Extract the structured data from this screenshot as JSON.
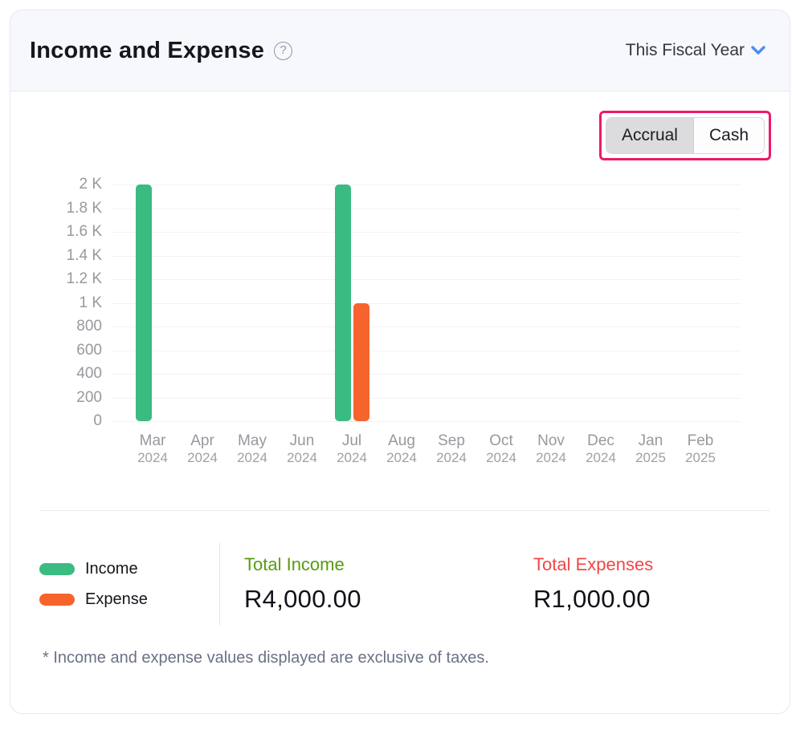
{
  "header": {
    "title": "Income and Expense",
    "help_glyph": "?",
    "period_selector": "This Fiscal Year"
  },
  "toolbar": {
    "accrual_label": "Accrual",
    "cash_label": "Cash",
    "selected": "Accrual",
    "highlight_color": "#ed196a"
  },
  "chart_data": {
    "type": "bar",
    "title": "Income and Expense",
    "categories": [
      {
        "month": "Mar",
        "year": "2024"
      },
      {
        "month": "Apr",
        "year": "2024"
      },
      {
        "month": "May",
        "year": "2024"
      },
      {
        "month": "Jun",
        "year": "2024"
      },
      {
        "month": "Jul",
        "year": "2024"
      },
      {
        "month": "Aug",
        "year": "2024"
      },
      {
        "month": "Sep",
        "year": "2024"
      },
      {
        "month": "Oct",
        "year": "2024"
      },
      {
        "month": "Nov",
        "year": "2024"
      },
      {
        "month": "Dec",
        "year": "2024"
      },
      {
        "month": "Jan",
        "year": "2025"
      },
      {
        "month": "Feb",
        "year": "2025"
      }
    ],
    "series": [
      {
        "name": "Income",
        "color": "#3abb81",
        "values": [
          2000,
          0,
          0,
          0,
          2000,
          0,
          0,
          0,
          0,
          0,
          0,
          0
        ]
      },
      {
        "name": "Expense",
        "color": "#f7632d",
        "values": [
          0,
          0,
          0,
          0,
          1000,
          0,
          0,
          0,
          0,
          0,
          0,
          0
        ]
      }
    ],
    "ylim": [
      0,
      2000
    ],
    "yticks": [
      {
        "v": 2000,
        "label": "2 K"
      },
      {
        "v": 1800,
        "label": "1.8 K"
      },
      {
        "v": 1600,
        "label": "1.6 K"
      },
      {
        "v": 1400,
        "label": "1.4 K"
      },
      {
        "v": 1200,
        "label": "1.2 K"
      },
      {
        "v": 1000,
        "label": "1 K"
      },
      {
        "v": 800,
        "label": "800"
      },
      {
        "v": 600,
        "label": "600"
      },
      {
        "v": 400,
        "label": "400"
      },
      {
        "v": 200,
        "label": "200"
      },
      {
        "v": 0,
        "label": "0"
      }
    ],
    "grid": "horizontal",
    "legend_position": "bottom-left"
  },
  "legend": {
    "items": [
      {
        "label": "Income",
        "color": "#3abb81"
      },
      {
        "label": "Expense",
        "color": "#f7632d"
      }
    ]
  },
  "totals": {
    "income": {
      "label": "Total Income",
      "value": "R4,000.00"
    },
    "expenses": {
      "label": "Total Expenses",
      "value": "R1,000.00"
    }
  },
  "footnote": "* Income and expense values displayed are exclusive of taxes."
}
